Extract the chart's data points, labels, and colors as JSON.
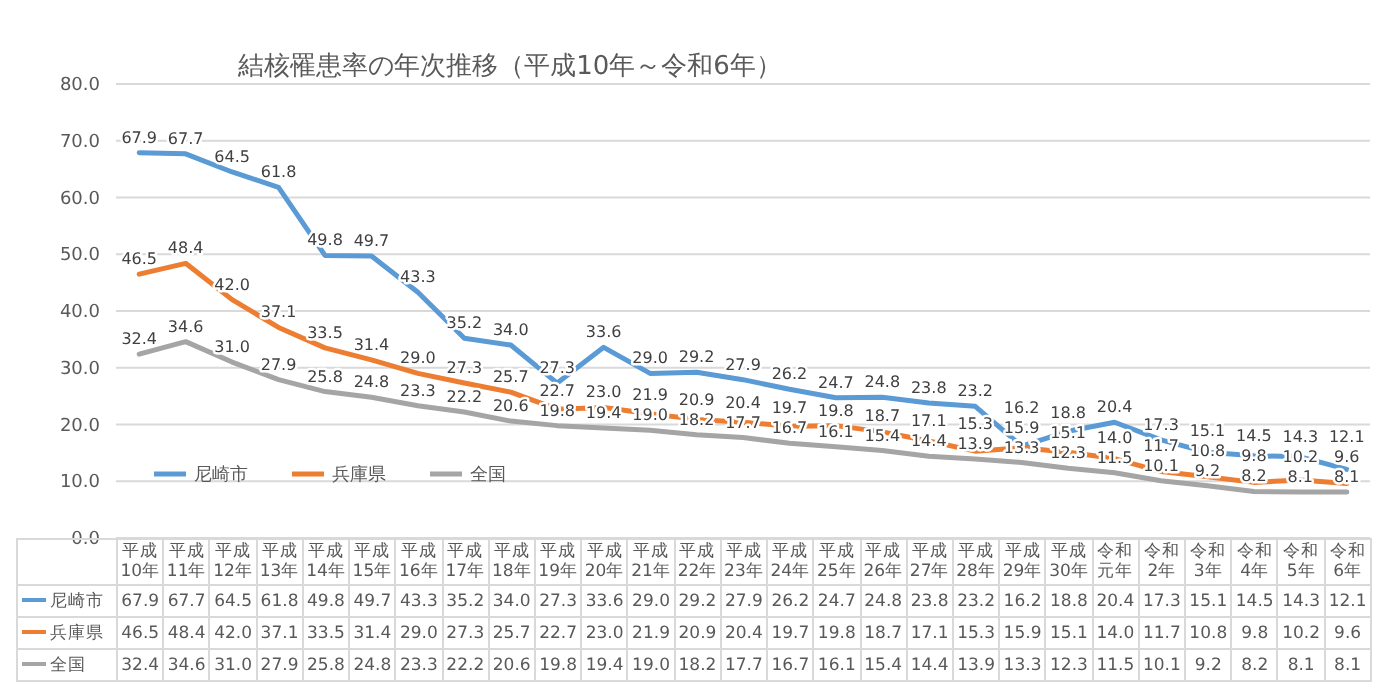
{
  "chart_data": {
    "type": "line",
    "title": "結核罹患率の年次推移（平成10年～令和6年）",
    "categories": [
      "平成10年",
      "平成11年",
      "平成12年",
      "平成13年",
      "平成14年",
      "平成15年",
      "平成16年",
      "平成17年",
      "平成18年",
      "平成19年",
      "平成20年",
      "平成21年",
      "平成22年",
      "平成23年",
      "平成24年",
      "平成25年",
      "平成26年",
      "平成27年",
      "平成28年",
      "平成29年",
      "平成30年",
      "令和元年",
      "令和2年",
      "令和3年",
      "令和4年",
      "令和5年",
      "令和6年"
    ],
    "series": [
      {
        "name": "尼崎市",
        "color": "#5b9bd5",
        "values": [
          67.9,
          67.7,
          64.5,
          61.8,
          49.8,
          49.7,
          43.3,
          35.2,
          34.0,
          27.3,
          33.6,
          29.0,
          29.2,
          27.9,
          26.2,
          24.7,
          24.8,
          23.8,
          23.2,
          16.2,
          18.8,
          20.4,
          17.3,
          15.1,
          14.5,
          14.3,
          12.1
        ],
        "value_labels": [
          "67.9",
          "67.7",
          "64.5",
          "61.8",
          "49.8",
          "49.7",
          "43.3",
          "35.2",
          "34.0",
          "27.3",
          "33.6",
          "29.0",
          "29.2",
          "27.9",
          "26.2",
          "24.7",
          "24.8",
          "23.8",
          "23.2",
          "16.2",
          "18.8",
          "20.4",
          "17.3",
          "15.1",
          "14.5",
          "14.3",
          "12.1"
        ]
      },
      {
        "name": "兵庫県",
        "color": "#ed7d31",
        "values": [
          46.5,
          48.4,
          42.0,
          37.1,
          33.5,
          31.4,
          29.0,
          27.3,
          25.7,
          22.7,
          23.0,
          21.9,
          20.9,
          20.4,
          19.7,
          19.8,
          18.7,
          17.1,
          15.3,
          15.9,
          15.1,
          14.0,
          11.7,
          10.8,
          9.8,
          10.2,
          9.6
        ],
        "value_labels": [
          "46.5",
          "48.4",
          "42.0",
          "37.1",
          "33.5",
          "31.4",
          "29.0",
          "27.3",
          "25.7",
          "22.7",
          "23.0",
          "21.9",
          "20.9",
          "20.4",
          "19.7",
          "19.8",
          "18.7",
          "17.1",
          "15.3",
          "15.9",
          "15.1",
          "14.0",
          "11.7",
          "10.8",
          "9.8",
          "10.2",
          "9.6"
        ]
      },
      {
        "name": "全国",
        "color": "#a5a5a5",
        "values": [
          32.4,
          34.6,
          31.0,
          27.9,
          25.8,
          24.8,
          23.3,
          22.2,
          20.6,
          19.8,
          19.4,
          19.0,
          18.2,
          17.7,
          16.7,
          16.1,
          15.4,
          14.4,
          13.9,
          13.3,
          12.3,
          11.5,
          10.1,
          9.2,
          8.2,
          8.1,
          8.1
        ],
        "value_labels": [
          "32.4",
          "34.6",
          "31.0",
          "27.9",
          "25.8",
          "24.8",
          "23.3",
          "22.2",
          "20.6",
          "19.8",
          "19.4",
          "19.0",
          "18.2",
          "17.7",
          "16.7",
          "16.1",
          "15.4",
          "14.4",
          "13.9",
          "13.3",
          "12.3",
          "11.5",
          "10.1",
          "9.2",
          "8.2",
          "8.1",
          "8.1"
        ]
      }
    ],
    "ylim": [
      0,
      80
    ],
    "yticks": [
      {
        "value": 0,
        "label": "0.0"
      },
      {
        "value": 10,
        "label": "10.0"
      },
      {
        "value": 20,
        "label": "20.0"
      },
      {
        "value": 30,
        "label": "30.0"
      },
      {
        "value": 40,
        "label": "40.0"
      },
      {
        "value": 50,
        "label": "50.0"
      },
      {
        "value": 60,
        "label": "60.0"
      },
      {
        "value": 70,
        "label": "70.0"
      },
      {
        "value": 80,
        "label": "80.0"
      }
    ],
    "grid": "y",
    "legend": "bottom left",
    "marker": "none",
    "line_style": "solid"
  }
}
